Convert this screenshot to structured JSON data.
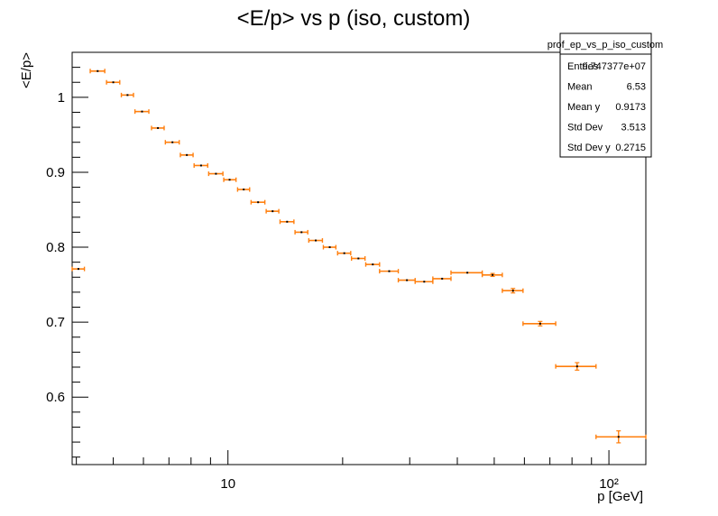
{
  "chart_data": {
    "type": "scatter",
    "title": "<E/p> vs p (iso, custom)",
    "xlabel": "p [GeV]",
    "ylabel": "<E/p>",
    "x_scale": "log",
    "xlim": [
      3.9,
      125
    ],
    "ylim": [
      0.51,
      1.06
    ],
    "x_ticks": [
      {
        "value": 10,
        "label": "10"
      },
      {
        "value": 100,
        "label": "10²"
      }
    ],
    "y_ticks": [
      0.6,
      0.7,
      0.8,
      0.9,
      1.0
    ],
    "y_tick_labels": [
      "0.6",
      "0.7",
      "0.8",
      "0.9",
      "1"
    ],
    "grid": false,
    "marker_color": "#ff7f0e",
    "series": [
      {
        "points": [
          {
            "x": 4.05,
            "xlo": 3.9,
            "xhi": 4.2,
            "y": 0.771,
            "err": 0.001
          },
          {
            "x": 4.55,
            "xlo": 4.35,
            "xhi": 4.75,
            "y": 1.035,
            "err": 0.001
          },
          {
            "x": 5.0,
            "xlo": 4.8,
            "xhi": 5.2,
            "y": 1.02,
            "err": 0.001
          },
          {
            "x": 5.45,
            "xlo": 5.25,
            "xhi": 5.65,
            "y": 1.003,
            "err": 0.001
          },
          {
            "x": 5.95,
            "xlo": 5.7,
            "xhi": 6.2,
            "y": 0.981,
            "err": 0.001
          },
          {
            "x": 6.55,
            "xlo": 6.3,
            "xhi": 6.8,
            "y": 0.959,
            "err": 0.001
          },
          {
            "x": 7.15,
            "xlo": 6.85,
            "xhi": 7.45,
            "y": 0.94,
            "err": 0.001
          },
          {
            "x": 7.8,
            "xlo": 7.5,
            "xhi": 8.1,
            "y": 0.923,
            "err": 0.001
          },
          {
            "x": 8.5,
            "xlo": 8.15,
            "xhi": 8.85,
            "y": 0.909,
            "err": 0.001
          },
          {
            "x": 9.3,
            "xlo": 8.9,
            "xhi": 9.7,
            "y": 0.898,
            "err": 0.001
          },
          {
            "x": 10.1,
            "xlo": 9.75,
            "xhi": 10.5,
            "y": 0.89,
            "err": 0.001
          },
          {
            "x": 11.0,
            "xlo": 10.6,
            "xhi": 11.4,
            "y": 0.877,
            "err": 0.001
          },
          {
            "x": 12.0,
            "xlo": 11.5,
            "xhi": 12.5,
            "y": 0.86,
            "err": 0.001
          },
          {
            "x": 13.1,
            "xlo": 12.6,
            "xhi": 13.6,
            "y": 0.848,
            "err": 0.001
          },
          {
            "x": 14.3,
            "xlo": 13.7,
            "xhi": 14.9,
            "y": 0.834,
            "err": 0.001
          },
          {
            "x": 15.6,
            "xlo": 15.0,
            "xhi": 16.2,
            "y": 0.82,
            "err": 0.001
          },
          {
            "x": 17.0,
            "xlo": 16.3,
            "xhi": 17.7,
            "y": 0.809,
            "err": 0.001
          },
          {
            "x": 18.5,
            "xlo": 17.8,
            "xhi": 19.2,
            "y": 0.8,
            "err": 0.001
          },
          {
            "x": 20.2,
            "xlo": 19.4,
            "xhi": 21.0,
            "y": 0.792,
            "err": 0.001
          },
          {
            "x": 22.0,
            "xlo": 21.1,
            "xhi": 22.9,
            "y": 0.785,
            "err": 0.001
          },
          {
            "x": 24.0,
            "xlo": 23.0,
            "xhi": 25.0,
            "y": 0.777,
            "err": 0.001
          },
          {
            "x": 26.5,
            "xlo": 25.0,
            "xhi": 28.0,
            "y": 0.768,
            "err": 0.001
          },
          {
            "x": 29.5,
            "xlo": 28.0,
            "xhi": 31.0,
            "y": 0.756,
            "err": 0.001
          },
          {
            "x": 32.75,
            "xlo": 31.0,
            "xhi": 34.5,
            "y": 0.754,
            "err": 0.001
          },
          {
            "x": 36.5,
            "xlo": 34.5,
            "xhi": 38.5,
            "y": 0.758,
            "err": 0.001
          },
          {
            "x": 42.5,
            "xlo": 38.5,
            "xhi": 46.5,
            "y": 0.766,
            "err": 0.001
          },
          {
            "x": 49.5,
            "xlo": 46.5,
            "xhi": 52.5,
            "y": 0.763,
            "err": 0.002
          },
          {
            "x": 56.0,
            "xlo": 52.5,
            "xhi": 59.5,
            "y": 0.742,
            "err": 0.003
          },
          {
            "x": 66.0,
            "xlo": 59.5,
            "xhi": 72.5,
            "y": 0.698,
            "err": 0.003
          },
          {
            "x": 82.5,
            "xlo": 72.5,
            "xhi": 92.5,
            "y": 0.641,
            "err": 0.005
          },
          {
            "x": 106.0,
            "xlo": 92.5,
            "xhi": 125,
            "y": 0.547,
            "err": 0.008
          }
        ]
      }
    ]
  },
  "stats": {
    "title": "prof_ep_vs_p_iso_custom",
    "rows": [
      {
        "label": "Entries",
        "value": "9.747377e+07"
      },
      {
        "label": "Mean",
        "value": "6.53"
      },
      {
        "label": "Mean y",
        "value": "0.9173"
      },
      {
        "label": "Std Dev",
        "value": "3.513"
      },
      {
        "label": "Std Dev y",
        "value": "0.2715"
      }
    ]
  }
}
